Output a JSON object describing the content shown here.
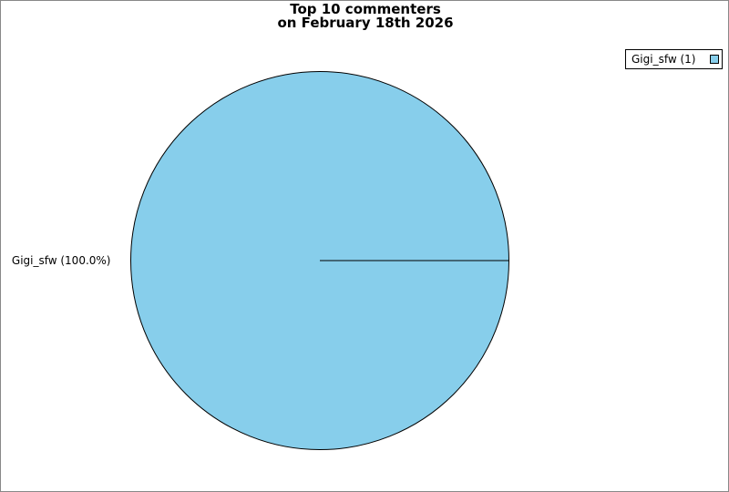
{
  "chart_data": {
    "type": "pie",
    "title": [
      "Top 10 commenters",
      "on February 18th 2026"
    ],
    "slices": [
      {
        "name": "Gigi_sfw",
        "value": 1,
        "percent": 100.0,
        "label": "Gigi_sfw (100.0%)",
        "legend": "Gigi_sfw (1)",
        "color": "#87CEEB"
      }
    ],
    "legend_placement": "top-right"
  }
}
